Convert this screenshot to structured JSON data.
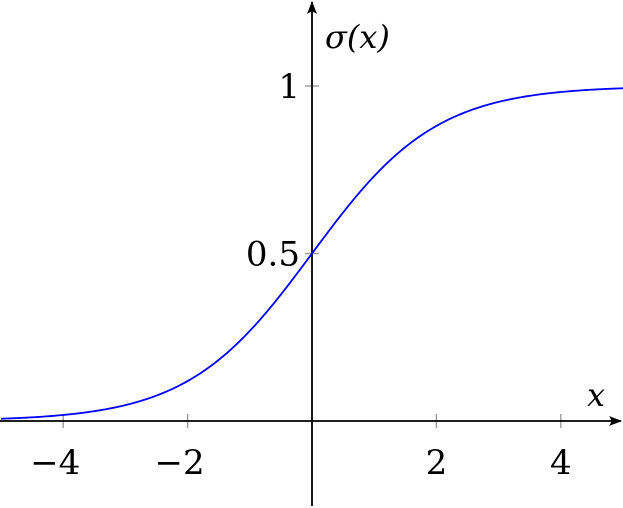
{
  "chart_data": {
    "type": "line",
    "function": "sigmoid",
    "xlabel": "x",
    "ylabel": "σ(x)",
    "xlim": [
      -5,
      5
    ],
    "ylim": [
      -0.25,
      1.25
    ],
    "x_ticks": [
      -4,
      -2,
      2,
      4
    ],
    "x_tick_labels": [
      "−4",
      "−2",
      "2",
      "4"
    ],
    "y_ticks": [
      0.5,
      1
    ],
    "y_tick_labels": [
      "0.5",
      "1"
    ],
    "grid": false,
    "series": [
      {
        "color": "#0000ff",
        "x": [
          -5,
          -4.5,
          -4,
          -3.5,
          -3,
          -2.5,
          -2,
          -1.5,
          -1,
          -0.5,
          0,
          0.5,
          1,
          1.5,
          2,
          2.5,
          3,
          3.5,
          4,
          4.5,
          5
        ],
        "y": [
          0.0067,
          0.011,
          0.018,
          0.0293,
          0.0474,
          0.0759,
          0.1192,
          0.1824,
          0.2689,
          0.3775,
          0.5,
          0.6225,
          0.7311,
          0.8176,
          0.8808,
          0.9241,
          0.9526,
          0.9707,
          0.982,
          0.989,
          0.9933
        ]
      }
    ]
  }
}
